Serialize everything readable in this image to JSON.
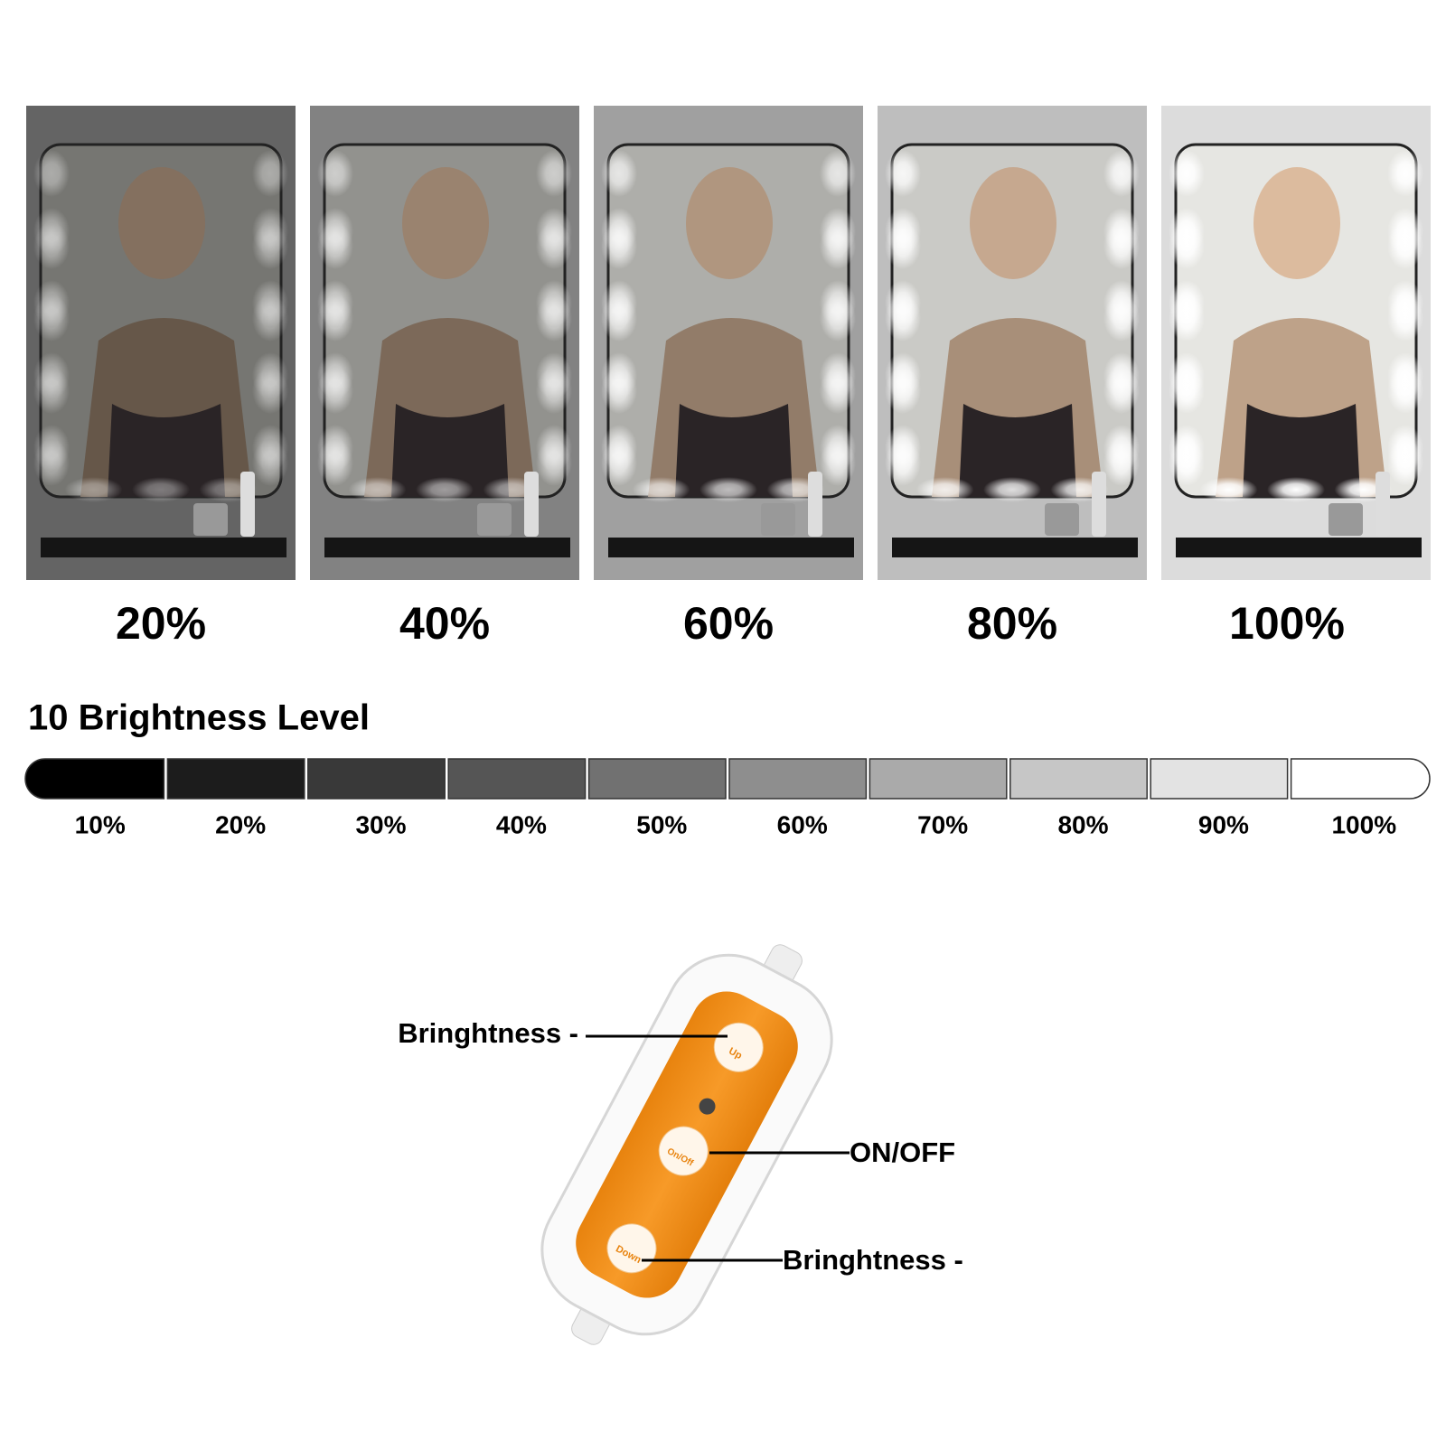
{
  "panels": {
    "labels": [
      "20%",
      "40%",
      "60%",
      "80%",
      "100%"
    ]
  },
  "brightness_bar": {
    "title": "10 Brightness Level",
    "labels": [
      "10%",
      "20%",
      "30%",
      "40%",
      "50%",
      "60%",
      "70%",
      "80%",
      "90%",
      "100%"
    ]
  },
  "remote": {
    "buttons": [
      "Up",
      "On/Off",
      "Down"
    ],
    "callouts": [
      "Bringhtness -",
      "ON/OFF",
      "Bringhtness -"
    ]
  }
}
